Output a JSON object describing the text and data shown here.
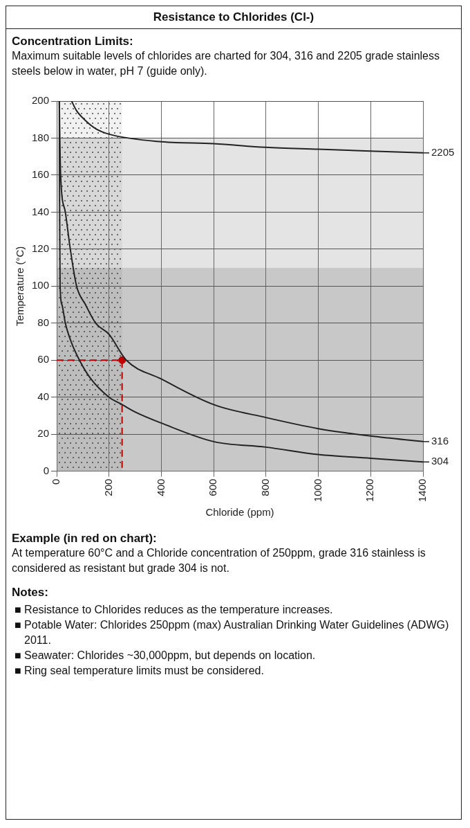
{
  "chart_data": {
    "type": "line",
    "title": "Resistance to Chlorides (Cl-)",
    "xlabel": "Chloride (ppm)",
    "ylabel": "Temperature (°C)",
    "xlim": [
      0,
      1400
    ],
    "xticks": [
      0,
      200,
      400,
      600,
      800,
      1000,
      1200,
      1400
    ],
    "ylim": [
      0,
      200
    ],
    "yticks": [
      0,
      20,
      40,
      60,
      80,
      100,
      120,
      140,
      160,
      180,
      200
    ],
    "grid": true,
    "legend": "right",
    "marker": "none",
    "line_style": "solid",
    "series": [
      {
        "name": "2205",
        "color": "#222222",
        "x": [
          57,
          75,
          106,
          150,
          203,
          400,
          600,
          800,
          1000,
          1200,
          1400
        ],
        "values": [
          200,
          195,
          190,
          185,
          182,
          178,
          177,
          175,
          174,
          173,
          172
        ]
      },
      {
        "name": "316",
        "color": "#222222",
        "x": [
          10,
          12,
          15,
          33,
          52,
          76,
          110,
          149,
          200,
          266,
          397,
          600,
          800,
          1000,
          1200,
          1400
        ],
        "values": [
          200,
          180,
          160,
          140,
          120,
          100,
          90,
          80,
          74,
          60,
          50,
          36,
          29,
          23,
          19,
          16
        ]
      },
      {
        "name": "304",
        "color": "#222222",
        "x": [
          10,
          11,
          13,
          20,
          33,
          55,
          87,
          130,
          200,
          250,
          300,
          400,
          600,
          800,
          1000,
          1200,
          1400
        ],
        "values": [
          200,
          150,
          100,
          90,
          80,
          70,
          60,
          50,
          40,
          36,
          32,
          26,
          16,
          13,
          9,
          7,
          5
        ]
      },
      {
        "type": "line",
        "color": "#c00000",
        "line_style": "dashed",
        "marker": "none",
        "x": [
          0,
          250,
          250
        ],
        "values": [
          60,
          60,
          0
        ]
      },
      {
        "type": "scatter",
        "color": "#c00000",
        "marker": "circle",
        "x": [
          250
        ],
        "values": [
          60
        ]
      }
    ],
    "bands": [
      {
        "axis": "y",
        "from": 0,
        "to": 110,
        "color": "#c8c8c8"
      },
      {
        "axis": "y",
        "from": 110,
        "to": 180,
        "color": "#e4e4e4"
      },
      {
        "axis": "x",
        "from": 0,
        "to": 250,
        "color": "#333333"
      }
    ],
    "annotations": [
      "Concentration Limits:",
      "Maximum suitable levels of chlorides are charted for 304, 316 and 2205 grade stainless steels below in water, pH 7 (guide only).",
      "Example (in red on chart):",
      "At temperature 60°C and a Chloride concentration of 250ppm, grade 316 stainless is considered as resistant but grade 304 is not.",
      "Notes:",
      "■ Resistance to Chlorides reduces as the temperature increases.",
      "■ Potable Water: Chlorides 250ppm (max) Australian Drinking Water Guidelines (ADWG) 2011.",
      "■ Seawater: Chlorides ~30,000ppm, but depends on location.",
      "■ Ring seal temperature limits must be considered."
    ]
  }
}
